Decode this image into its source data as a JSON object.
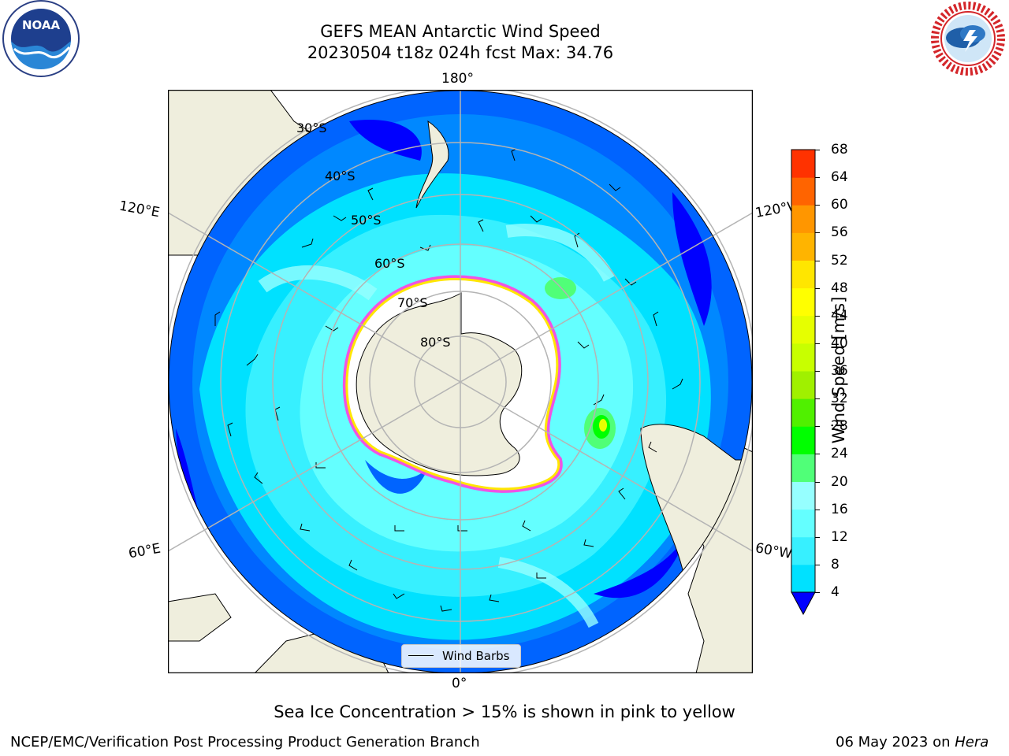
{
  "title": {
    "line1": "GEFS MEAN Antarctic Wind Speed",
    "line2": "20230504 t18z 024h fcst   Max: 34.76"
  },
  "map": {
    "longitude_labels": [
      "180°",
      "120°E",
      "120°W",
      "60°E",
      "60°W",
      "0°"
    ],
    "latitude_labels": [
      "30°S",
      "40°S",
      "50°S",
      "60°S",
      "70°S",
      "80°S"
    ],
    "land_color": "#efeedd",
    "ice_shelf_color": "#ffffff",
    "gridline_color": "#b4b4b4",
    "legend_label": "Wind Barbs"
  },
  "colorbar": {
    "label": "Wind Speed [m/s]",
    "ticks": [
      "68",
      "64",
      "60",
      "56",
      "52",
      "48",
      "44",
      "40",
      "36",
      "32",
      "28",
      "24",
      "20",
      "16",
      "12",
      "8",
      "4"
    ],
    "colors_low_to_high": [
      "#0064ff",
      "#00e1ff",
      "#37f0ff",
      "#64ffff",
      "#96ffff",
      "#50ff78",
      "#00ff00",
      "#50f000",
      "#a0f000",
      "#c8ff00",
      "#e6ff00",
      "#ffff00",
      "#ffe600",
      "#ffb400",
      "#ff9600",
      "#ff6400",
      "#ff3200",
      "#ff0000"
    ],
    "extend_color": "#0000ff"
  },
  "logos": {
    "noaa": "NOAA",
    "nws_ring": "NATIONAL WEATHER SERVICE"
  },
  "note": "Sea Ice Concentration > 15% is shown in pink to yellow",
  "footer": {
    "left": "NCEP/EMC/Verification Post Processing Product Generation Branch",
    "right_prefix": "06 May 2023 on ",
    "right_host": "Hera"
  }
}
